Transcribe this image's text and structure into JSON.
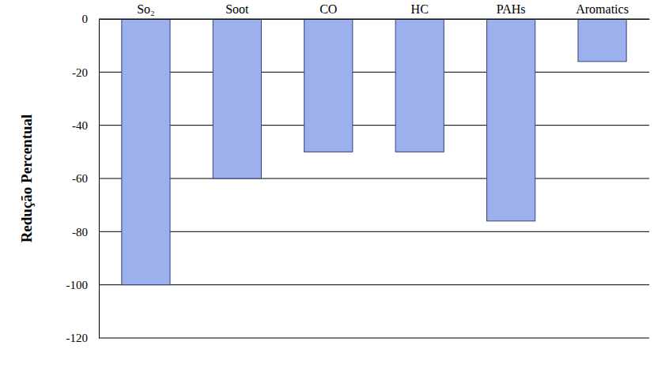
{
  "chart_data": {
    "type": "bar",
    "y_label": "Redução Percentual",
    "categories": [
      "So₂",
      "Soot",
      "CO",
      "HC",
      "PAHs",
      "Aromatics"
    ],
    "values": [
      -100,
      -60,
      -50,
      -50,
      -76,
      -16
    ],
    "color": "#9db0ee",
    "ylim": [
      -120,
      0
    ],
    "yticks": [
      0,
      -20,
      -40,
      -60,
      -80,
      -100,
      -120
    ],
    "grid": true
  }
}
